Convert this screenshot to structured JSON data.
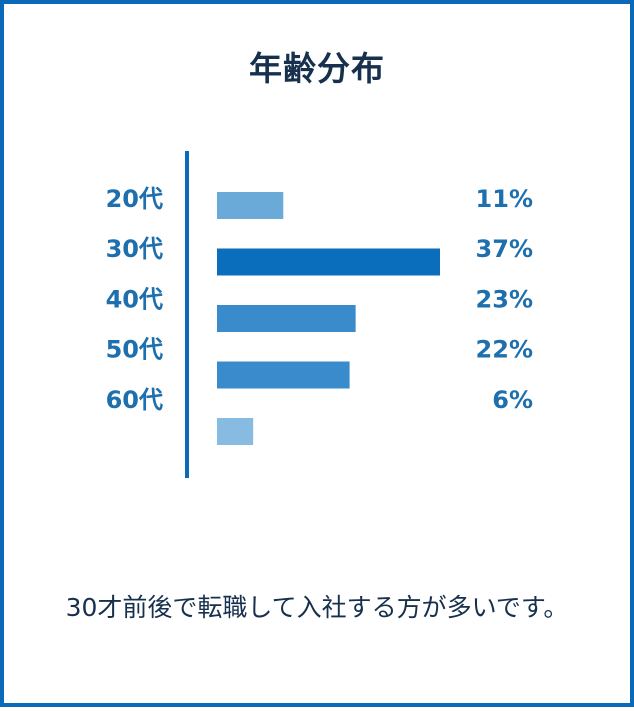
{
  "title": "年齢分布",
  "caption": "30才前後で転職して入社する方が多いです。",
  "colors": {
    "border": "#0a6ab8",
    "axis": "#0a6ab8",
    "label": "#1e6fad",
    "text": "#16304d"
  },
  "chart_data": {
    "type": "bar",
    "orientation": "horizontal",
    "categories": [
      "20代",
      "30代",
      "40代",
      "50代",
      "60代"
    ],
    "values": [
      11,
      37,
      23,
      22,
      6
    ],
    "value_labels": [
      "11%",
      "37%",
      "23%",
      "22%",
      "6%"
    ],
    "bar_colors": [
      "#6aaad8",
      "#0a6ebd",
      "#3a8bcb",
      "#3a8bcb",
      "#88bbe2"
    ],
    "unit": "%",
    "xlim": [
      0,
      37
    ]
  }
}
